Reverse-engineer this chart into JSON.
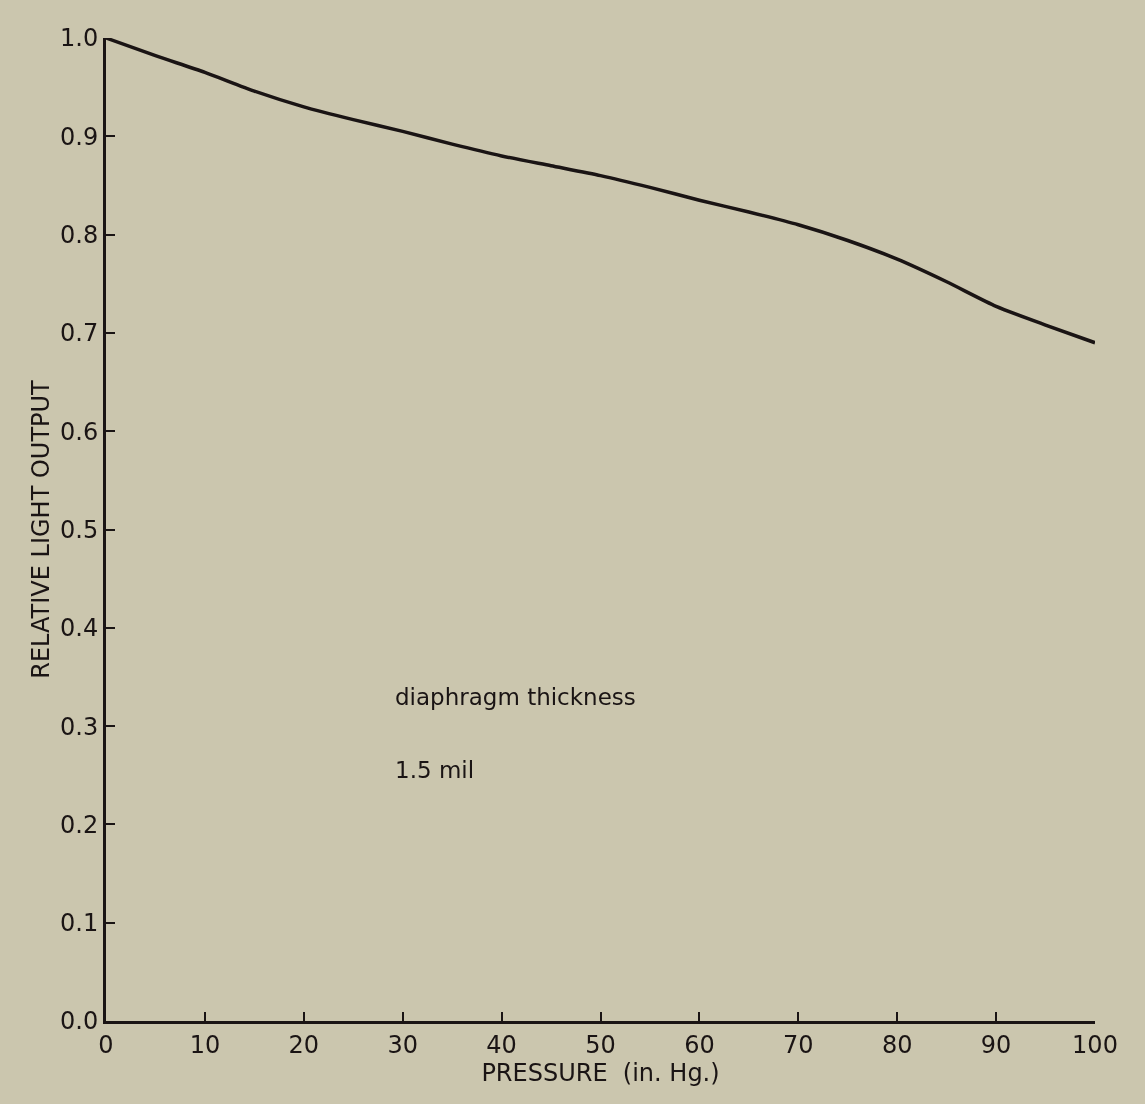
{
  "chart_data": {
    "type": "line",
    "xlabel": "PRESSURE  (in. Hg.)",
    "ylabel": "RELATIVE LIGHT OUTPUT",
    "x": [
      0,
      5,
      10,
      15,
      20,
      25,
      30,
      35,
      40,
      45,
      50,
      55,
      60,
      65,
      70,
      75,
      80,
      85,
      90,
      95,
      100
    ],
    "series": [
      {
        "color": "#1a1414",
        "values": [
          1.0,
          0.982,
          0.965,
          0.946,
          0.93,
          0.917,
          0.905,
          0.892,
          0.88,
          0.87,
          0.86,
          0.848,
          0.835,
          0.823,
          0.81,
          0.794,
          0.775,
          0.752,
          0.727,
          0.708,
          0.69
        ]
      }
    ],
    "xlim": [
      0,
      100
    ],
    "xticks": [
      0,
      10,
      20,
      30,
      40,
      50,
      60,
      70,
      80,
      90,
      100
    ],
    "ylim": [
      0,
      1.0
    ],
    "yticks": [
      {
        "value": 0,
        "label": "0.0"
      },
      0.1,
      0.2,
      0.3,
      0.4,
      0.5,
      0.6,
      0.7,
      0.8,
      0.9,
      {
        "value": 1,
        "label": "1.0"
      }
    ],
    "marker": "none",
    "line_style": "solid",
    "annotations": [
      "diaphragm thickness",
      "1.5 mil"
    ]
  }
}
